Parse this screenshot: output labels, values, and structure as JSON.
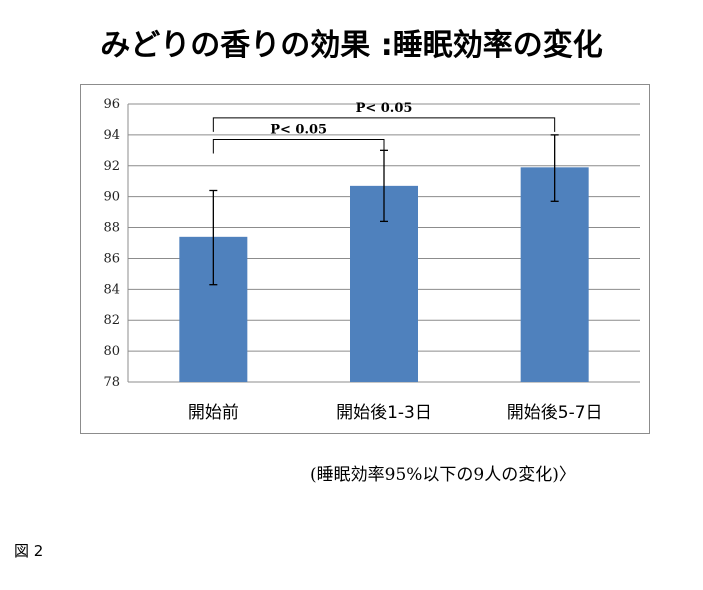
{
  "chart_data": {
    "type": "bar",
    "title": "みどりの香りの効果 :睡眠効率の変化",
    "categories": [
      "開始前",
      "開始後1-3日",
      "開始後5-7日"
    ],
    "values": [
      87.4,
      90.7,
      91.9
    ],
    "error_low": [
      84.3,
      88.4,
      89.7
    ],
    "error_high": [
      90.4,
      93.0,
      94.0
    ],
    "ylim": [
      78,
      96
    ],
    "yticks": [
      "78",
      "80",
      "82",
      "84",
      "86",
      "88",
      "90",
      "92",
      "94",
      "96"
    ],
    "xlabel": "",
    "ylabel": "",
    "grid": true,
    "bar_color": "#4f81bd",
    "significance": [
      {
        "label": "P< 0.05",
        "from": 0,
        "to": 1
      },
      {
        "label": "P< 0.05",
        "from": 0,
        "to": 2
      }
    ]
  },
  "note": "(睡眠効率95%以下の9人の変化)〉",
  "figure_label": "図 2"
}
